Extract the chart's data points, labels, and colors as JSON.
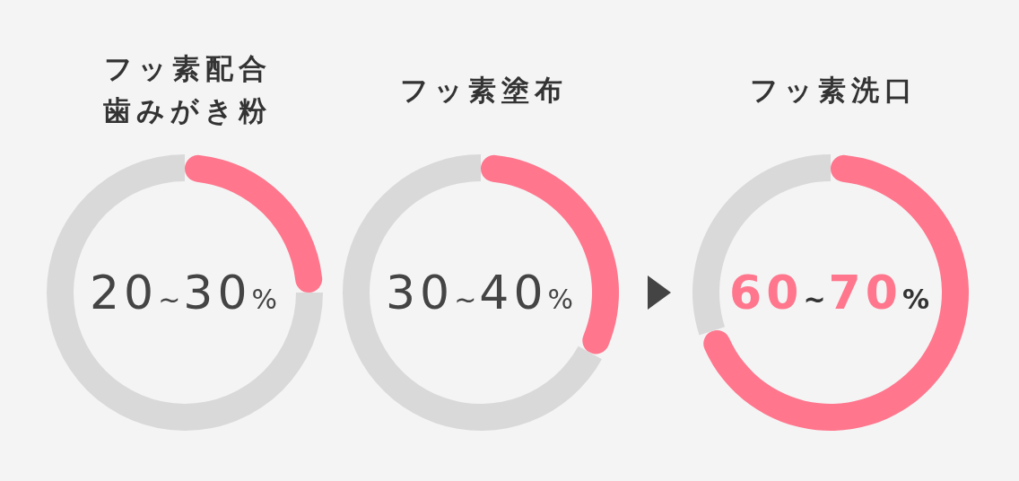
{
  "chart_data": [
    {
      "type": "donut",
      "title": "フッ素配合歯みがき粉",
      "categories": [
        null,
        null
      ],
      "values": [
        25,
        75
      ],
      "colors": [
        "#ff768d",
        "#d9d9d9"
      ],
      "annotations": [
        "20~30%"
      ]
    },
    {
      "type": "donut",
      "title": "フッ素塗布",
      "categories": [
        null,
        null
      ],
      "values": [
        33,
        67
      ],
      "colors": [
        "#ff768d",
        "#d9d9d9"
      ],
      "annotations": [
        "30~40%"
      ]
    },
    {
      "type": "donut",
      "title": "フッ素洗口",
      "categories": [
        null,
        null
      ],
      "values": [
        70,
        30
      ],
      "colors": [
        "#ff768d",
        "#d9d9d9"
      ],
      "annotations": [
        "60~70%"
      ]
    }
  ]
}
